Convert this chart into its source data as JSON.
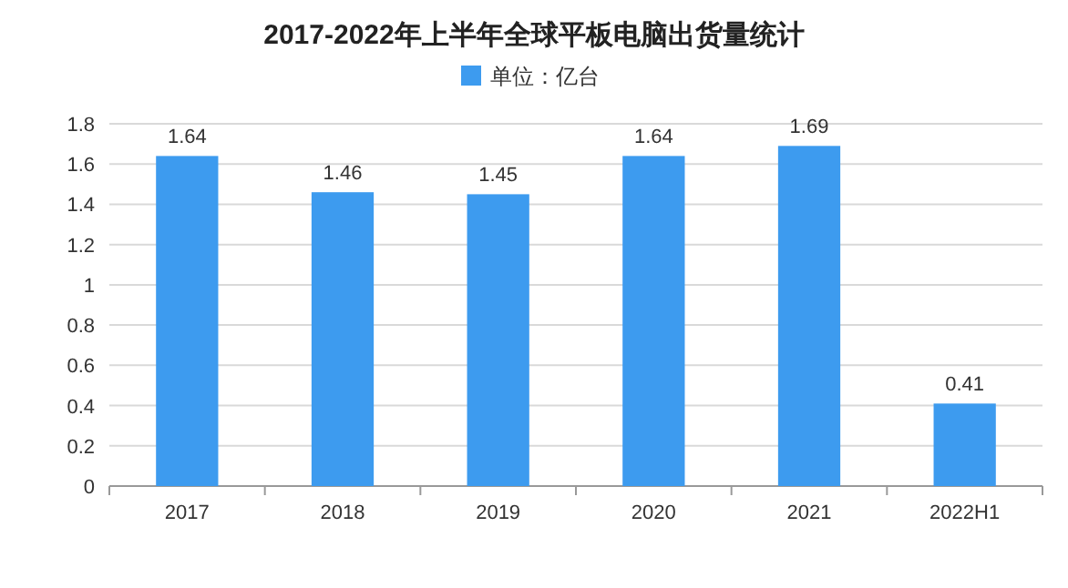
{
  "chart_data": {
    "type": "bar",
    "title": "2017-2022年上半年全球平板电脑出货量统计",
    "categories": [
      "2017",
      "2018",
      "2019",
      "2020",
      "2021",
      "2022H1"
    ],
    "series": [
      {
        "name": "单位：亿台",
        "color": "#3d9bef",
        "values": [
          1.64,
          1.46,
          1.45,
          1.64,
          1.69,
          0.41
        ]
      }
    ],
    "ylim": [
      0,
      1.8
    ],
    "yticks": [
      0,
      0.2,
      0.4,
      0.6,
      0.8,
      1,
      1.2,
      1.4,
      1.6,
      1.8
    ],
    "grid": "y",
    "legend": "top",
    "data_labels": true
  }
}
